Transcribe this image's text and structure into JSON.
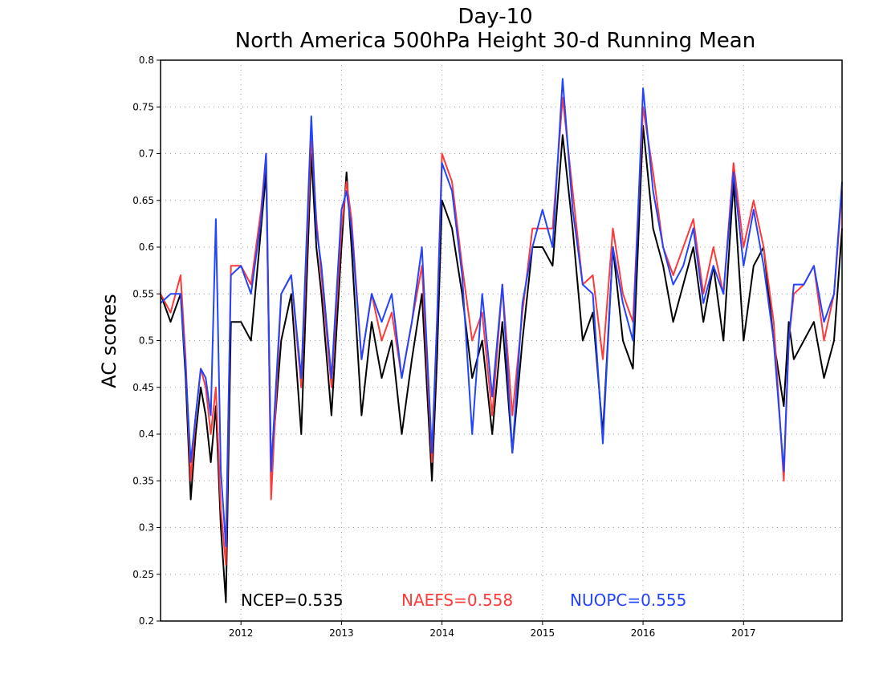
{
  "chart_data": {
    "type": "line",
    "title": "Day-10",
    "subtitle": "North America 500hPa Height 30-d Running Mean",
    "xlabel": "",
    "ylabel": "AC scores",
    "xlim": [
      2011.2,
      2017.98
    ],
    "ylim": [
      0.2,
      0.8
    ],
    "y_ticks": [
      0.2,
      0.25,
      0.3,
      0.35,
      0.4,
      0.45,
      0.5,
      0.55,
      0.6,
      0.65,
      0.7,
      0.75,
      0.8
    ],
    "y_tick_labels": [
      "0.2",
      "0.25",
      "0.3",
      "0.35",
      "0.4",
      "0.45",
      "0.5",
      "0.55",
      "0.6",
      "0.65",
      "0.7",
      "0.75",
      "0.8"
    ],
    "x_ticks": [
      2012,
      2013,
      2014,
      2015,
      2016,
      2017
    ],
    "x_tick_labels": [
      "2012",
      "2013",
      "2014",
      "2015",
      "2016",
      "2017"
    ],
    "grid": true,
    "legend_position": "bottom inside plot area",
    "x": [
      2011.2,
      2011.3,
      2011.4,
      2011.45,
      2011.5,
      2011.55,
      2011.6,
      2011.65,
      2011.7,
      2011.75,
      2011.8,
      2011.85,
      2011.9,
      2012.0,
      2012.1,
      2012.2,
      2012.25,
      2012.3,
      2012.4,
      2012.5,
      2012.6,
      2012.7,
      2012.75,
      2012.8,
      2012.9,
      2013.0,
      2013.05,
      2013.1,
      2013.2,
      2013.3,
      2013.4,
      2013.5,
      2013.6,
      2013.7,
      2013.8,
      2013.9,
      2013.95,
      2014.0,
      2014.1,
      2014.2,
      2014.3,
      2014.4,
      2014.5,
      2014.6,
      2014.7,
      2014.8,
      2014.9,
      2015.0,
      2015.1,
      2015.2,
      2015.3,
      2015.4,
      2015.5,
      2015.6,
      2015.7,
      2015.8,
      2015.9,
      2016.0,
      2016.1,
      2016.2,
      2016.3,
      2016.4,
      2016.5,
      2016.6,
      2016.7,
      2016.8,
      2016.9,
      2017.0,
      2017.1,
      2017.2,
      2017.3,
      2017.4,
      2017.45,
      2017.5,
      2017.6,
      2017.7,
      2017.8,
      2017.9,
      2017.98
    ],
    "series": [
      {
        "name": "NCEP",
        "color": "#000000",
        "values": [
          0.55,
          0.52,
          0.55,
          0.46,
          0.33,
          0.4,
          0.45,
          0.42,
          0.37,
          0.43,
          0.3,
          0.22,
          0.52,
          0.52,
          0.5,
          0.62,
          0.68,
          0.36,
          0.5,
          0.55,
          0.4,
          0.7,
          0.6,
          0.55,
          0.42,
          0.6,
          0.68,
          0.6,
          0.42,
          0.52,
          0.46,
          0.5,
          0.4,
          0.48,
          0.55,
          0.35,
          0.48,
          0.65,
          0.62,
          0.55,
          0.46,
          0.5,
          0.4,
          0.52,
          0.38,
          0.5,
          0.6,
          0.6,
          0.58,
          0.72,
          0.62,
          0.5,
          0.53,
          0.4,
          0.6,
          0.5,
          0.47,
          0.73,
          0.62,
          0.58,
          0.52,
          0.56,
          0.6,
          0.52,
          0.58,
          0.5,
          0.67,
          0.5,
          0.58,
          0.6,
          0.5,
          0.43,
          0.52,
          0.48,
          0.5,
          0.52,
          0.46,
          0.5,
          0.62
        ]
      },
      {
        "name": "NAEFS",
        "color": "#ff3a3a",
        "values": [
          0.55,
          0.53,
          0.57,
          0.48,
          0.35,
          0.42,
          0.47,
          0.45,
          0.4,
          0.45,
          0.32,
          0.26,
          0.58,
          0.58,
          0.56,
          0.64,
          0.7,
          0.33,
          0.55,
          0.57,
          0.45,
          0.72,
          0.63,
          0.57,
          0.45,
          0.62,
          0.67,
          0.63,
          0.48,
          0.55,
          0.5,
          0.53,
          0.46,
          0.52,
          0.58,
          0.37,
          0.52,
          0.7,
          0.67,
          0.58,
          0.5,
          0.53,
          0.42,
          0.56,
          0.42,
          0.53,
          0.62,
          0.62,
          0.62,
          0.76,
          0.66,
          0.56,
          0.57,
          0.48,
          0.62,
          0.55,
          0.52,
          0.75,
          0.68,
          0.6,
          0.57,
          0.6,
          0.63,
          0.55,
          0.6,
          0.55,
          0.69,
          0.6,
          0.65,
          0.6,
          0.52,
          0.35,
          0.5,
          0.55,
          0.56,
          0.58,
          0.5,
          0.55,
          0.66
        ]
      },
      {
        "name": "NUOPC",
        "color": "#2244ff",
        "values": [
          0.54,
          0.55,
          0.55,
          0.47,
          0.37,
          0.42,
          0.47,
          0.46,
          0.42,
          0.63,
          0.36,
          0.28,
          0.57,
          0.58,
          0.55,
          0.63,
          0.7,
          0.36,
          0.55,
          0.57,
          0.46,
          0.74,
          0.62,
          0.58,
          0.46,
          0.64,
          0.66,
          0.62,
          0.48,
          0.55,
          0.52,
          0.55,
          0.46,
          0.52,
          0.6,
          0.38,
          0.52,
          0.69,
          0.66,
          0.57,
          0.4,
          0.55,
          0.44,
          0.56,
          0.38,
          0.54,
          0.6,
          0.64,
          0.6,
          0.78,
          0.64,
          0.56,
          0.55,
          0.39,
          0.6,
          0.54,
          0.5,
          0.77,
          0.66,
          0.6,
          0.56,
          0.58,
          0.62,
          0.54,
          0.58,
          0.55,
          0.68,
          0.58,
          0.64,
          0.58,
          0.5,
          0.36,
          0.5,
          0.56,
          0.56,
          0.58,
          0.52,
          0.55,
          0.67
        ]
      }
    ],
    "legend": [
      {
        "label": "NCEP=0.535",
        "color": "#000000"
      },
      {
        "label": "NAEFS=0.558",
        "color": "#ff3a3a"
      },
      {
        "label": "NUOPC=0.555",
        "color": "#2244ff"
      }
    ]
  }
}
